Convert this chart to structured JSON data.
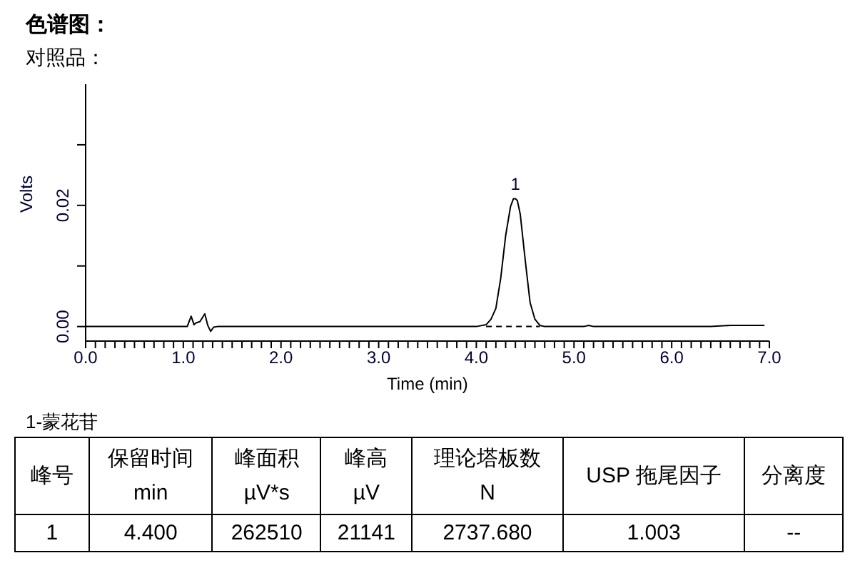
{
  "chart_data": {
    "type": "line",
    "title": "色谱图：",
    "subtitle": "对照品：",
    "xlabel": "Time (min)",
    "ylabel": "Volts",
    "xlim": [
      0,
      7
    ],
    "ylim": [
      -0.0024,
      0.04
    ],
    "xticks": [
      {
        "value": 0,
        "label": "0.0"
      },
      {
        "value": 0.1,
        "label": null
      },
      {
        "value": 0.2,
        "label": null
      },
      {
        "value": 0.3,
        "label": null
      },
      {
        "value": 0.4,
        "label": null
      },
      {
        "value": 0.5,
        "label": null
      },
      {
        "value": 0.6,
        "label": null
      },
      {
        "value": 0.7,
        "label": null
      },
      {
        "value": 0.8,
        "label": null
      },
      {
        "value": 0.9,
        "label": null
      },
      {
        "value": 1,
        "label": "1.0"
      },
      {
        "value": 1.1,
        "label": null
      },
      {
        "value": 1.2,
        "label": null
      },
      {
        "value": 1.3,
        "label": null
      },
      {
        "value": 1.4,
        "label": null
      },
      {
        "value": 1.5,
        "label": null
      },
      {
        "value": 1.6,
        "label": null
      },
      {
        "value": 1.7,
        "label": null
      },
      {
        "value": 1.8,
        "label": null
      },
      {
        "value": 1.9,
        "label": null
      },
      {
        "value": 2,
        "label": "2.0"
      },
      {
        "value": 2.1,
        "label": null
      },
      {
        "value": 2.2,
        "label": null
      },
      {
        "value": 2.3,
        "label": null
      },
      {
        "value": 2.4,
        "label": null
      },
      {
        "value": 2.5,
        "label": null
      },
      {
        "value": 2.6,
        "label": null
      },
      {
        "value": 2.7,
        "label": null
      },
      {
        "value": 2.8,
        "label": null
      },
      {
        "value": 2.9,
        "label": null
      },
      {
        "value": 3,
        "label": "3.0"
      },
      {
        "value": 3.1,
        "label": null
      },
      {
        "value": 3.2,
        "label": null
      },
      {
        "value": 3.3,
        "label": null
      },
      {
        "value": 3.4,
        "label": null
      },
      {
        "value": 3.5,
        "label": null
      },
      {
        "value": 3.6,
        "label": null
      },
      {
        "value": 3.7,
        "label": null
      },
      {
        "value": 3.8,
        "label": null
      },
      {
        "value": 3.9,
        "label": null
      },
      {
        "value": 4,
        "label": "4.0"
      },
      {
        "value": 4.1,
        "label": null
      },
      {
        "value": 4.2,
        "label": null
      },
      {
        "value": 4.3,
        "label": null
      },
      {
        "value": 4.4,
        "label": null
      },
      {
        "value": 4.5,
        "label": null
      },
      {
        "value": 4.6,
        "label": null
      },
      {
        "value": 4.7,
        "label": null
      },
      {
        "value": 4.8,
        "label": null
      },
      {
        "value": 4.9,
        "label": null
      },
      {
        "value": 5,
        "label": "5.0"
      },
      {
        "value": 5.1,
        "label": null
      },
      {
        "value": 5.2,
        "label": null
      },
      {
        "value": 5.3,
        "label": null
      },
      {
        "value": 5.4,
        "label": null
      },
      {
        "value": 5.5,
        "label": null
      },
      {
        "value": 5.6,
        "label": null
      },
      {
        "value": 5.7,
        "label": null
      },
      {
        "value": 5.8,
        "label": null
      },
      {
        "value": 5.9,
        "label": null
      },
      {
        "value": 6,
        "label": "6.0"
      },
      {
        "value": 6.1,
        "label": null
      },
      {
        "value": 6.2,
        "label": null
      },
      {
        "value": 6.3,
        "label": null
      },
      {
        "value": 6.4,
        "label": null
      },
      {
        "value": 6.5,
        "label": null
      },
      {
        "value": 6.6,
        "label": null
      },
      {
        "value": 6.7,
        "label": null
      },
      {
        "value": 6.8,
        "label": null
      },
      {
        "value": 6.9,
        "label": null
      },
      {
        "value": 7,
        "label": "7.0"
      }
    ],
    "yticks": [
      {
        "value": 0,
        "label": "0.00"
      },
      {
        "value": 0.01,
        "label": null
      },
      {
        "value": 0.02,
        "label": "0.02"
      },
      {
        "value": 0.03,
        "label": null
      }
    ],
    "grid": false,
    "legend": false,
    "marker": "none",
    "series": [
      {
        "color": "#000000",
        "line_style": "solid",
        "x": [
          0,
          1.0,
          1.04,
          1.08,
          1.11,
          1.13,
          1.17,
          1.22,
          1.25,
          1.28,
          1.31,
          1.35,
          2.0,
          3.0,
          4.0,
          4.1,
          4.15,
          4.2,
          4.25,
          4.3,
          4.35,
          4.38,
          4.4,
          4.42,
          4.45,
          4.5,
          4.55,
          4.6,
          4.65,
          4.7,
          5.1,
          5.15,
          5.2,
          6.0,
          6.4,
          6.6,
          6.9,
          6.95
        ],
        "values": [
          0,
          0,
          0,
          0.0017,
          0.0003,
          0.0006,
          0.0008,
          0.0021,
          0.0002,
          -0.0008,
          -0.0001,
          0,
          0,
          0,
          0,
          0.0003,
          0.0012,
          0.003,
          0.008,
          0.015,
          0.0198,
          0.0211,
          0.0211,
          0.0208,
          0.0185,
          0.011,
          0.004,
          0.0012,
          0.0002,
          0,
          0,
          0.0002,
          0,
          0,
          0,
          0.0002,
          0.0002,
          0.0002
        ]
      },
      {
        "color": "#000000",
        "line_style": "dashed",
        "x": [
          4.1,
          4.65
        ],
        "values": [
          0,
          0
        ]
      }
    ],
    "annotations": [
      {
        "text": "1",
        "x": 4.4,
        "y": 0.0211
      },
      "1-蒙花苷",
      "峰号",
      "保留时间\nmin",
      "峰面积\nµV*s",
      "峰高\nµV",
      "理论塔板数\nN",
      "USP 拖尾因子",
      "分离度",
      "1",
      "4.400",
      "262510",
      "21141",
      "2737.680",
      "1.003",
      "--"
    ]
  }
}
